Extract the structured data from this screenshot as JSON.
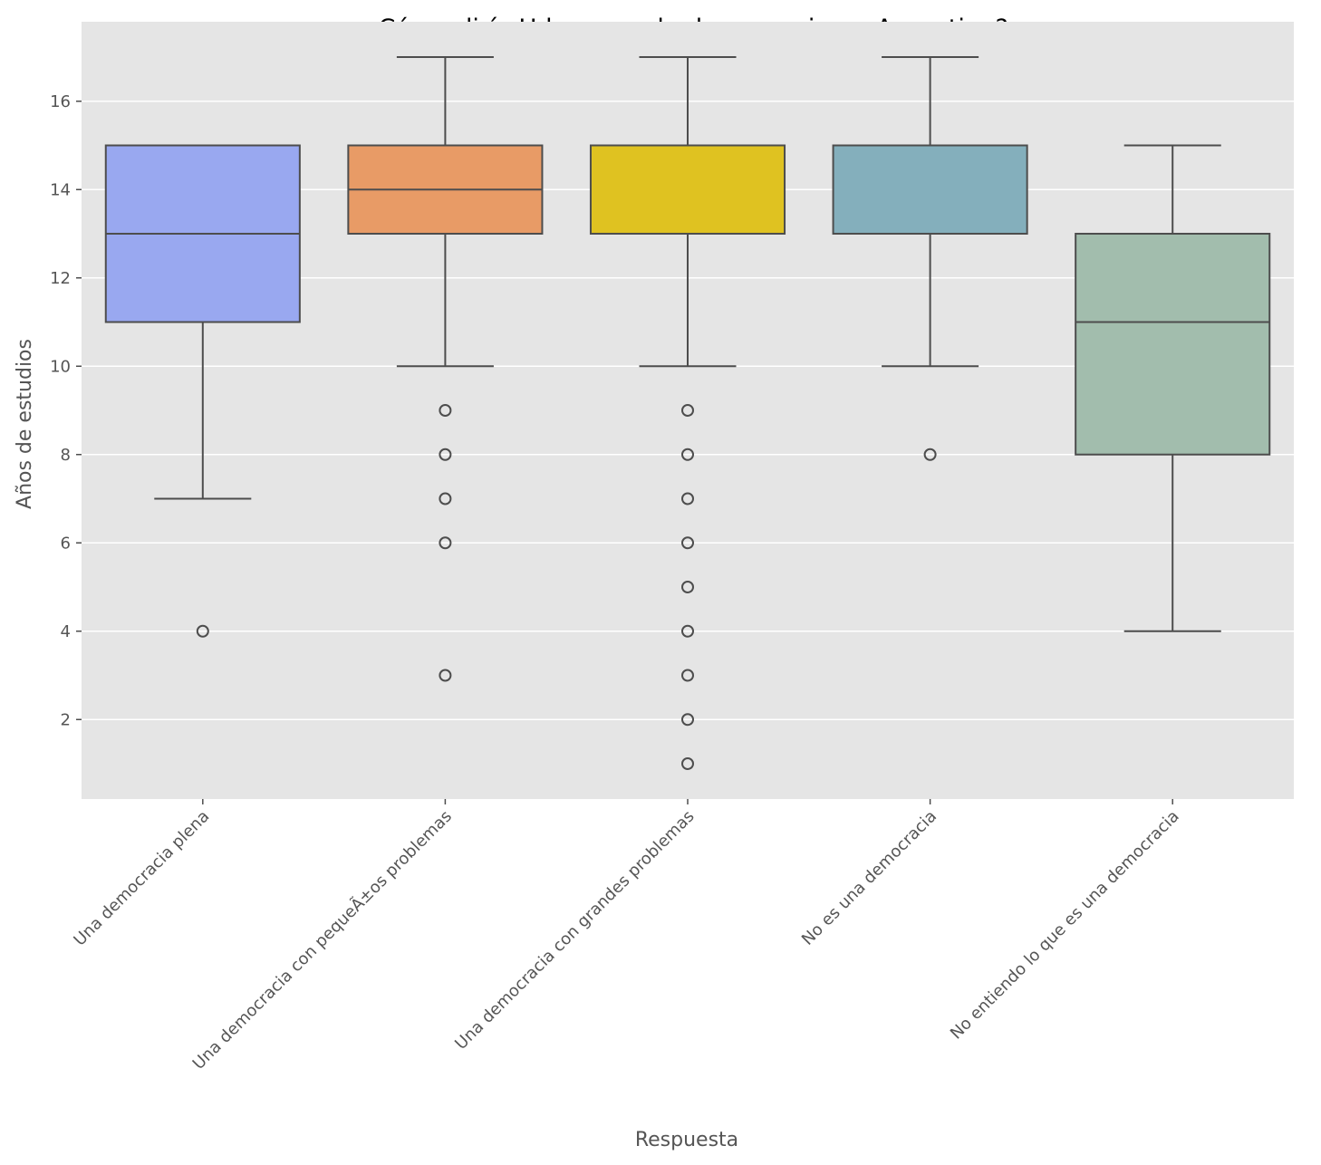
{
  "chart_data": {
    "type": "box",
    "title": "¿Cómo diría Ud. que es la democracia en Argentina?",
    "xlabel": "Respuesta",
    "ylabel": "Años de estudios",
    "ylim": [
      0.2,
      17.8
    ],
    "yticks": [
      2,
      4,
      6,
      8,
      10,
      12,
      14,
      16
    ],
    "grid": true,
    "categories": [
      "Una democracia plena",
      "Una democracia con pequeÃ±os problemas",
      "Una democracia con grandes problemas",
      "No es una democracia",
      "No entiendo lo que es una democracia"
    ],
    "boxes": [
      {
        "category": "Una democracia plena",
        "whisker_low": 7,
        "q1": 11,
        "median": 13,
        "q3": 15,
        "whisker_high": 15,
        "outliers": [
          4
        ],
        "color": "#99a8f0"
      },
      {
        "category": "Una democracia con pequeÃ±os problemas",
        "whisker_low": 10,
        "q1": 13,
        "median": 14,
        "q3": 15,
        "whisker_high": 17,
        "outliers": [
          9,
          8,
          7,
          6,
          3
        ],
        "color": "#e89b66"
      },
      {
        "category": "Una democracia con grandes problemas",
        "whisker_low": 10,
        "q1": 13,
        "median": 15,
        "q3": 15,
        "whisker_high": 17,
        "outliers": [
          9,
          8,
          7,
          6,
          5,
          4,
          3,
          2,
          1
        ],
        "color": "#dfc221"
      },
      {
        "category": "No es una democracia",
        "whisker_low": 10,
        "q1": 13,
        "median": 15,
        "q3": 15,
        "whisker_high": 17,
        "outliers": [
          8
        ],
        "color": "#84afbc"
      },
      {
        "category": "No entiendo lo que es una democracia",
        "whisker_low": 4,
        "q1": 8,
        "median": 11,
        "q3": 13,
        "whisker_high": 15,
        "outliers": [],
        "color": "#a2bdad"
      }
    ],
    "colors": {
      "panel": "#e5e5e5",
      "grid": "#ffffff",
      "edge": "#4d4d4d",
      "text": "#555555"
    }
  }
}
